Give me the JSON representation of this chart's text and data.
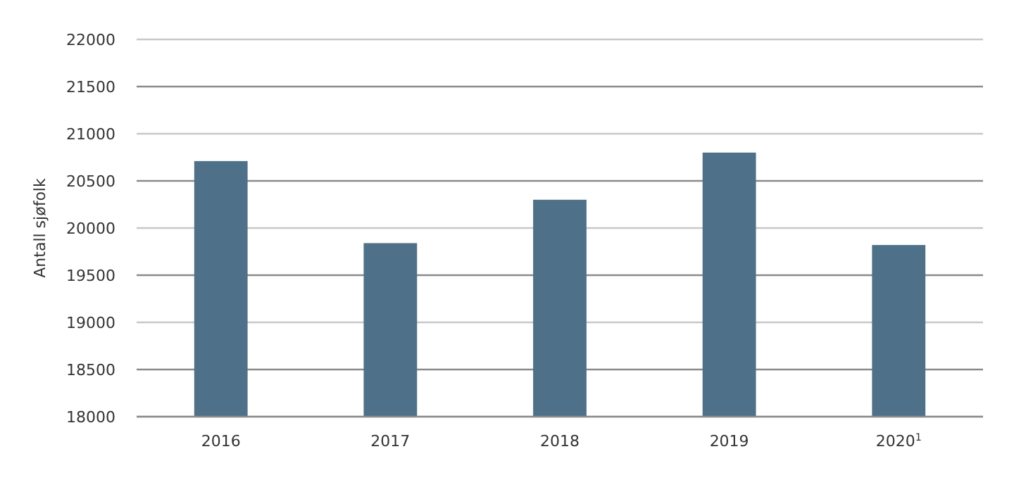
{
  "chart_data": {
    "type": "bar",
    "ylabel": "Antall sjøfolk",
    "categories": [
      "2016",
      "2017",
      "2018",
      "2019",
      "2020$^{1}$"
    ],
    "values": [
      20710,
      19840,
      20300,
      20800,
      19820
    ],
    "color": "#4e7189",
    "ylim": [
      18000,
      22000
    ],
    "yticks": [
      18000,
      18500,
      19000,
      19500,
      20000,
      20500,
      21000,
      21500,
      22000
    ],
    "grid": "y"
  }
}
